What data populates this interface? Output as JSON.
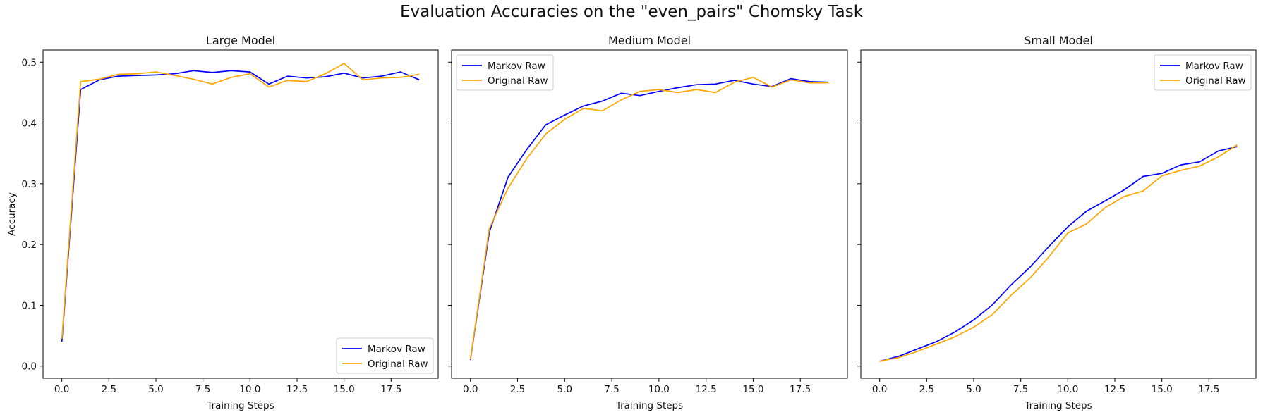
{
  "figure": {
    "title": "Evaluation Accuracies on the \"even_pairs\" Chomsky Task"
  },
  "chart_data": [
    {
      "type": "line",
      "title": "Large Model",
      "xlabel": "Training Steps",
      "ylabel": "Accuracy",
      "xlim": [
        -1,
        20
      ],
      "ylim": [
        -0.02,
        0.52
      ],
      "xticks": [
        0.0,
        2.5,
        5.0,
        7.5,
        10.0,
        12.5,
        15.0,
        17.5
      ],
      "xtick_labels": [
        "0.0",
        "2.5",
        "5.0",
        "7.5",
        "10.0",
        "12.5",
        "15.0",
        "17.5"
      ],
      "yticks": [
        0.0,
        0.1,
        0.2,
        0.3,
        0.4,
        0.5
      ],
      "ytick_labels": [
        "0.0",
        "0.1",
        "0.2",
        "0.3",
        "0.4",
        "0.5"
      ],
      "show_yticklabels": true,
      "legend_position": "lower-right",
      "x": [
        0,
        1,
        2,
        3,
        4,
        5,
        6,
        7,
        8,
        9,
        10,
        11,
        12,
        13,
        14,
        15,
        16,
        17,
        18,
        19
      ],
      "series": [
        {
          "name": "Markov Raw",
          "color": "#0000ff",
          "values": [
            0.04,
            0.455,
            0.471,
            0.477,
            0.478,
            0.479,
            0.481,
            0.486,
            0.483,
            0.486,
            0.484,
            0.464,
            0.477,
            0.474,
            0.476,
            0.482,
            0.474,
            0.477,
            0.484,
            0.471
          ]
        },
        {
          "name": "Original Raw",
          "color": "#ffa500",
          "values": [
            0.045,
            0.468,
            0.472,
            0.48,
            0.481,
            0.484,
            0.478,
            0.472,
            0.464,
            0.475,
            0.481,
            0.459,
            0.47,
            0.468,
            0.481,
            0.498,
            0.471,
            0.474,
            0.475,
            0.48
          ]
        }
      ]
    },
    {
      "type": "line",
      "title": "Medium Model",
      "xlabel": "Training Steps",
      "ylabel": "",
      "xlim": [
        -1,
        20
      ],
      "ylim": [
        -0.02,
        0.52
      ],
      "xticks": [
        0.0,
        2.5,
        5.0,
        7.5,
        10.0,
        12.5,
        15.0,
        17.5
      ],
      "xtick_labels": [
        "0.0",
        "2.5",
        "5.0",
        "7.5",
        "10.0",
        "12.5",
        "15.0",
        "17.5"
      ],
      "yticks": [
        0.0,
        0.1,
        0.2,
        0.3,
        0.4,
        0.5
      ],
      "ytick_labels": [
        "",
        "",
        "",
        "",
        "",
        ""
      ],
      "show_yticklabels": false,
      "legend_position": "upper-left",
      "x": [
        0,
        1,
        2,
        3,
        4,
        5,
        6,
        7,
        8,
        9,
        10,
        11,
        12,
        13,
        14,
        15,
        16,
        17,
        18,
        19
      ],
      "series": [
        {
          "name": "Markov Raw",
          "color": "#0000ff",
          "values": [
            0.01,
            0.22,
            0.311,
            0.357,
            0.397,
            0.413,
            0.428,
            0.436,
            0.449,
            0.445,
            0.452,
            0.458,
            0.463,
            0.464,
            0.47,
            0.464,
            0.46,
            0.473,
            0.468,
            0.467
          ]
        },
        {
          "name": "Original Raw",
          "color": "#ffa500",
          "values": [
            0.011,
            0.226,
            0.293,
            0.342,
            0.382,
            0.406,
            0.424,
            0.42,
            0.438,
            0.452,
            0.455,
            0.45,
            0.455,
            0.45,
            0.467,
            0.475,
            0.459,
            0.471,
            0.466,
            0.466
          ]
        }
      ]
    },
    {
      "type": "line",
      "title": "Small Model",
      "xlabel": "Training Steps",
      "ylabel": "",
      "xlim": [
        -1,
        20
      ],
      "ylim": [
        -0.02,
        0.52
      ],
      "xticks": [
        0.0,
        2.5,
        5.0,
        7.5,
        10.0,
        12.5,
        15.0,
        17.5
      ],
      "xtick_labels": [
        "0.0",
        "2.5",
        "5.0",
        "7.5",
        "10.0",
        "12.5",
        "15.0",
        "17.5"
      ],
      "yticks": [
        0.0,
        0.1,
        0.2,
        0.3,
        0.4,
        0.5
      ],
      "ytick_labels": [
        "",
        "",
        "",
        "",
        "",
        ""
      ],
      "show_yticklabels": false,
      "legend_position": "upper-right",
      "x": [
        0,
        1,
        2,
        3,
        4,
        5,
        6,
        7,
        8,
        9,
        10,
        11,
        12,
        13,
        14,
        15,
        16,
        17,
        18,
        19
      ],
      "series": [
        {
          "name": "Markov Raw",
          "color": "#0000ff",
          "values": [
            0.008,
            0.016,
            0.028,
            0.04,
            0.056,
            0.076,
            0.101,
            0.134,
            0.163,
            0.197,
            0.229,
            0.255,
            0.272,
            0.29,
            0.312,
            0.317,
            0.331,
            0.336,
            0.354,
            0.361
          ]
        },
        {
          "name": "Original Raw",
          "color": "#ffa500",
          "values": [
            0.008,
            0.014,
            0.024,
            0.036,
            0.048,
            0.064,
            0.085,
            0.117,
            0.145,
            0.18,
            0.219,
            0.234,
            0.261,
            0.279,
            0.288,
            0.313,
            0.322,
            0.329,
            0.344,
            0.364
          ]
        }
      ]
    }
  ]
}
